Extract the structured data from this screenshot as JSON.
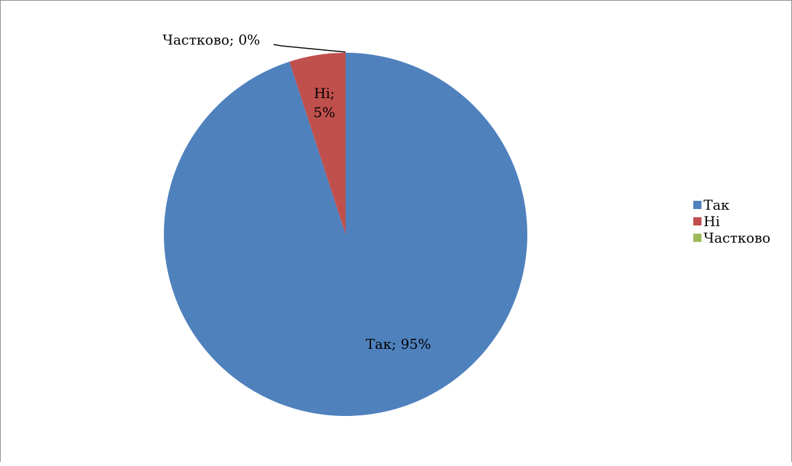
{
  "chart_data": {
    "type": "pie",
    "title": "",
    "categories": [
      "Так",
      "Ні",
      "Частково"
    ],
    "values": [
      95,
      5,
      0
    ],
    "colors": [
      "#4f81bd",
      "#c0504d",
      "#9bbb59"
    ],
    "data_labels": [
      [
        "Так; 95%"
      ],
      [
        "Ні;",
        "5%"
      ],
      [
        "Частково; 0%"
      ]
    ],
    "start_angle_deg": 0,
    "direction": "clockwise",
    "legend": {
      "placement": "right",
      "entries": [
        "Так",
        "Ні",
        "Частково"
      ]
    }
  }
}
